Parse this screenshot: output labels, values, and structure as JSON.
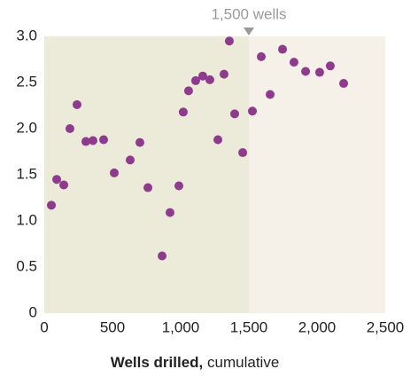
{
  "chart_data": {
    "type": "scatter",
    "xlabel_bold": "Wells drilled,",
    "xlabel": "cumulative",
    "annotation": {
      "x": 1500,
      "text": "1,500 wells"
    },
    "color": "#8e3b8d",
    "x": [
      52,
      91,
      143,
      188,
      240,
      305,
      357,
      435,
      513,
      630,
      701,
      760,
      864,
      922,
      987,
      1019,
      1058,
      1110,
      1162,
      1214,
      1273,
      1318,
      1357,
      1396,
      1455,
      1526,
      1591,
      1656,
      1747,
      1831,
      1916,
      2019,
      2097,
      2195
    ],
    "values": [
      1.17,
      1.45,
      1.39,
      2.0,
      2.26,
      1.86,
      1.87,
      1.88,
      1.52,
      1.66,
      1.85,
      1.36,
      0.62,
      1.09,
      1.38,
      2.18,
      2.41,
      2.52,
      2.57,
      2.53,
      1.88,
      2.59,
      2.95,
      2.16,
      1.74,
      2.19,
      2.78,
      2.37,
      2.86,
      2.72,
      2.62,
      2.61,
      2.68,
      2.49
    ],
    "xlim": [
      0,
      2500
    ],
    "xticks": [
      0,
      500,
      {
        "value": 1000,
        "label": "1,000"
      },
      {
        "value": 1500,
        "label": "1,500"
      },
      {
        "value": 2000,
        "label": "2,000"
      },
      {
        "value": 2500,
        "label": "2,500"
      }
    ],
    "ylim": [
      0,
      3
    ],
    "yticks": [
      0,
      0.5,
      {
        "value": 1,
        "label": "1.0"
      },
      1.5,
      {
        "value": 2,
        "label": "2.0"
      },
      2.5,
      {
        "value": 3,
        "label": "3.0"
      }
    ]
  }
}
